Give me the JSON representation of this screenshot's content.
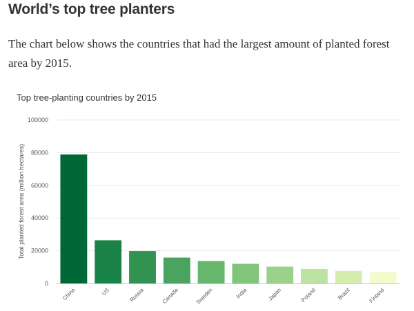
{
  "article": {
    "heading": "World’s top tree planters",
    "intro": "The chart below shows the countries that had the largest amount of planted forest area by 2015."
  },
  "chart_data": {
    "type": "bar",
    "title": "Top tree-planting countries by 2015",
    "ylabel": "Total planted forest area (million hectares)",
    "xlabel": "",
    "ylim": [
      0,
      100000
    ],
    "yticks": [
      0,
      20000,
      40000,
      60000,
      80000,
      100000
    ],
    "categories": [
      "China",
      "US",
      "Russia",
      "Canada",
      "Sweden",
      "India",
      "Japan",
      "Poland",
      "Brazil",
      "Finland"
    ],
    "values": [
      78900,
      26400,
      19800,
      15800,
      13700,
      12000,
      10300,
      8900,
      7700,
      6800
    ],
    "colors": [
      "#006837",
      "#1a8347",
      "#31934f",
      "#4aa35e",
      "#66b76c",
      "#80c57a",
      "#9bd18a",
      "#bde3a4",
      "#d6edb0",
      "#f4fac9"
    ],
    "grid": true,
    "legend": "none"
  }
}
